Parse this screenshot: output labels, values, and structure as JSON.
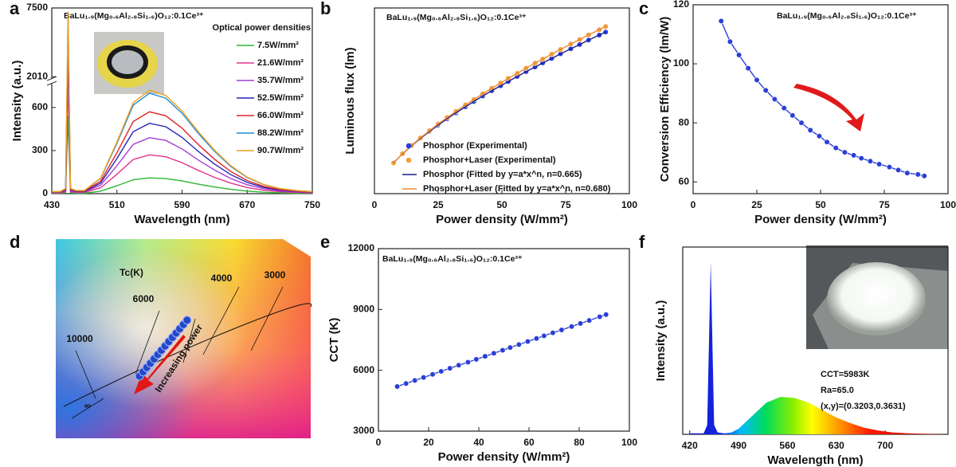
{
  "panel_labels": [
    "a",
    "b",
    "c",
    "d",
    "e",
    "f"
  ],
  "chart_data": [
    {
      "type": "line",
      "formula": "BaLu₁.₉(Mg₀.₆Al₂.₈Si₁.₆)O₁₂:0.1Ce³⁺",
      "xlabel": "Wavelength (nm)",
      "ylabel": "Intensity (a.u.)",
      "legend_title": "Optical power densities",
      "legend": "upper right",
      "x": [
        430,
        440,
        447,
        450,
        453,
        460,
        470,
        490,
        510,
        530,
        550,
        570,
        590,
        610,
        630,
        650,
        670,
        690,
        710,
        730,
        750
      ],
      "xlim": [
        430,
        750
      ],
      "xticks": [
        430,
        510,
        590,
        670,
        750
      ],
      "ylim": [
        0,
        7500
      ],
      "ybreak": [
        750,
        2010
      ],
      "yticks": [
        0,
        300,
        600,
        2010,
        7500
      ],
      "series": [
        {
          "name": "7.5W/mm²",
          "color": "#2fb52f",
          "values": [
            2,
            2,
            6,
            540,
            6,
            3,
            3,
            17,
            55,
            97,
            110,
            105,
            88,
            66,
            46,
            30,
            18,
            10,
            6,
            3,
            2
          ]
        },
        {
          "name": "21.6W/mm²",
          "color": "#e2338f",
          "values": [
            5,
            5,
            14,
            1500,
            14,
            8,
            8,
            41,
            135,
            238,
            270,
            257,
            216,
            162,
            113,
            73,
            43,
            24,
            14,
            8,
            5
          ]
        },
        {
          "name": "35.7W/mm²",
          "color": "#a43ed6",
          "values": [
            8,
            8,
            20,
            3000,
            20,
            12,
            12,
            59,
            195,
            343,
            390,
            371,
            312,
            234,
            164,
            105,
            62,
            35,
            20,
            12,
            8
          ]
        },
        {
          "name": "52.5W/mm²",
          "color": "#2323b8",
          "values": [
            10,
            10,
            25,
            4500,
            25,
            15,
            15,
            74,
            245,
            431,
            490,
            466,
            392,
            294,
            206,
            132,
            78,
            44,
            25,
            15,
            10
          ]
        },
        {
          "name": "66.0W/mm²",
          "color": "#e02424",
          "values": [
            11,
            11,
            29,
            5500,
            29,
            17,
            17,
            86,
            285,
            502,
            570,
            542,
            456,
            342,
            239,
            154,
            91,
            51,
            29,
            17,
            11
          ]
        },
        {
          "name": "88.2W/mm²",
          "color": "#1f8fd4",
          "values": [
            14,
            14,
            35,
            7000,
            35,
            21,
            21,
            105,
            350,
            616,
            700,
            665,
            560,
            420,
            294,
            189,
            112,
            63,
            35,
            21,
            14
          ]
        },
        {
          "name": "90.7W/mm²",
          "color": "#f0a020",
          "values": [
            14,
            14,
            36,
            7200,
            36,
            22,
            22,
            108,
            360,
            634,
            720,
            684,
            576,
            432,
            302,
            194,
            115,
            65,
            36,
            22,
            14
          ]
        }
      ]
    },
    {
      "type": "scatter",
      "formula": "BaLu₁.₉(Mg₀.₆Al₂.₈Si₁.₆)O₁₂:0.1Ce³⁺",
      "xlabel": "Power density (W/mm²)",
      "ylabel": "Luminous flux (lm)",
      "legend": "lower right",
      "x": [
        7.5,
        11,
        14.5,
        18,
        21.6,
        25,
        28.5,
        32,
        35.7,
        39,
        42.5,
        46,
        49.5,
        52.5,
        56,
        59.5,
        63,
        66,
        69.5,
        73,
        77,
        80.5,
        84,
        88.2,
        90.7
      ],
      "xlim": [
        0,
        100
      ],
      "xticks": [
        0,
        25,
        50,
        75,
        100
      ],
      "ylim": [
        0,
        100
      ],
      "series": [
        {
          "name": "Phosphor  (Experimental)",
          "color": "#2b3fd6",
          "mode": "markers",
          "values": [
            16.6,
            21.4,
            25.7,
            29.7,
            33.5,
            36.9,
            40.3,
            43.5,
            46.8,
            49.6,
            52.6,
            55.4,
            58.1,
            60.4,
            63.1,
            65.7,
            68.2,
            70.4,
            72.8,
            75.3,
            78.0,
            80.3,
            82.7,
            85.4,
            87.0
          ]
        },
        {
          "name": "Phosphor+Laser (Experimental)",
          "color": "#f0a040",
          "mode": "markers",
          "values": [
            16.5,
            21.5,
            25.9,
            30.0,
            33.9,
            37.5,
            41.0,
            44.3,
            47.8,
            50.7,
            53.8,
            56.8,
            59.6,
            62.1,
            64.8,
            67.6,
            70.3,
            72.5,
            75.1,
            77.7,
            80.6,
            83.0,
            85.5,
            88.3,
            90.0
          ]
        },
        {
          "name": "Phosphor (Fitted by y=a*x^n, n=0.665)",
          "color": "#1c1c8c",
          "mode": "line",
          "values": [
            16.6,
            21.4,
            25.7,
            29.7,
            33.5,
            36.9,
            40.3,
            43.5,
            46.8,
            49.6,
            52.6,
            55.4,
            58.1,
            60.4,
            63.1,
            65.7,
            68.2,
            70.4,
            72.8,
            75.3,
            78.0,
            80.3,
            82.7,
            85.4,
            87.0
          ]
        },
        {
          "name": "Phosphor+Laser (Fitted by y=a*x^n, n=0.680)",
          "color": "#f08a30",
          "mode": "line",
          "values": [
            16.5,
            21.5,
            25.9,
            30.0,
            33.9,
            37.5,
            41.0,
            44.3,
            47.8,
            50.7,
            53.8,
            56.8,
            59.6,
            62.1,
            64.8,
            67.6,
            70.3,
            72.5,
            75.1,
            77.7,
            80.6,
            83.0,
            85.5,
            88.3,
            90.0
          ]
        }
      ]
    },
    {
      "type": "line",
      "formula": "BaLu₁.₉(Mg₀.₆Al₂.₈Si₁.₆)O₁₂:0.1Ce³⁺",
      "xlabel": "Power density (W/mm²)",
      "ylabel": "Conversion Efficiency (lm/W)",
      "x": [
        11,
        14.5,
        18,
        21.6,
        25,
        28.5,
        32,
        35.7,
        39,
        42.5,
        46,
        49.5,
        52.5,
        56,
        59.5,
        63,
        66,
        69.5,
        73,
        77,
        80.5,
        84,
        88.2,
        90.7
      ],
      "xlim": [
        0,
        100
      ],
      "xticks": [
        0,
        25,
        50,
        75,
        100
      ],
      "ylim": [
        56,
        120
      ],
      "yticks": [
        60,
        80,
        100,
        120
      ],
      "color": "#2b3fd6",
      "mode": "line+markers",
      "values": [
        114.5,
        107.5,
        103,
        98.5,
        94.5,
        91,
        88,
        85,
        82.5,
        80,
        77.5,
        75.5,
        73.5,
        71.5,
        70,
        69,
        68,
        67,
        66,
        65,
        64,
        63,
        62.5,
        62
      ]
    },
    {
      "type": "cie",
      "labels": [
        "Tc(K)",
        "4000",
        "3000",
        "6000",
        "10000",
        "∞",
        "Increasing power"
      ]
    },
    {
      "type": "line",
      "formula": "BaLu₁.₉(Mg₀.₆Al₂.₈Si₁.₆)O₁₂:0.1Ce³⁺",
      "xlabel": "Power density (W/mm²)",
      "ylabel": "CCT (K)",
      "x": [
        7.5,
        11,
        14.5,
        18,
        21.6,
        25,
        28.5,
        32,
        35.7,
        39,
        42.5,
        46,
        49.5,
        52.5,
        56,
        59.5,
        63,
        66,
        69.5,
        73,
        77,
        80.5,
        84,
        88.2,
        90.7
      ],
      "xlim": [
        0,
        100
      ],
      "xticks": [
        0,
        20,
        40,
        60,
        80,
        100
      ],
      "ylim": [
        3000,
        12000
      ],
      "yticks": [
        3000,
        6000,
        9000,
        12000
      ],
      "color": "#2b3fd6",
      "mode": "line+markers",
      "values": [
        5200,
        5350,
        5500,
        5650,
        5800,
        5950,
        6100,
        6250,
        6400,
        6540,
        6690,
        6840,
        6990,
        7120,
        7270,
        7420,
        7570,
        7700,
        7850,
        7990,
        8160,
        8310,
        8460,
        8640,
        8750
      ]
    },
    {
      "type": "area",
      "xlabel": "Wavelength (nm)",
      "ylabel": "Intensity (a.u.)",
      "annotations": [
        "CCT=5983K",
        "Ra=65.0",
        "(x,y)=(0.3203,0.3631)"
      ],
      "x": [
        420,
        440,
        445,
        450,
        455,
        460,
        470,
        480,
        490,
        510,
        530,
        550,
        570,
        590,
        610,
        630,
        650,
        670,
        690,
        710,
        730,
        750,
        780
      ],
      "xlim": [
        410,
        790
      ],
      "xticks": [
        420,
        490,
        560,
        630,
        700
      ],
      "ylim": [
        0,
        100
      ],
      "values": [
        0.5,
        0.5,
        5,
        92,
        5,
        1,
        0.5,
        1,
        3,
        10,
        17,
        20,
        19.5,
        17,
        13,
        9,
        6,
        3.5,
        2,
        1,
        0.6,
        0.3,
        0.1
      ]
    }
  ]
}
